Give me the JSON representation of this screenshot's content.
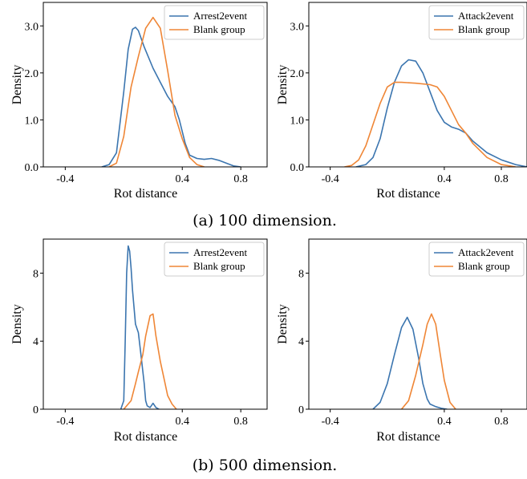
{
  "colors": {
    "series_blue": "#3b75af",
    "series_orange": "#ef8636"
  },
  "captions": [
    "(a) 100 dimension.",
    "(b) 500 dimension."
  ],
  "chart_data": [
    {
      "type": "line",
      "xlabel": "Rot distance",
      "ylabel": "Density",
      "xlim": [
        -0.55,
        0.98
      ],
      "ylim": [
        0,
        3.5
      ],
      "xticks": [
        -0.4,
        0.4,
        0.8
      ],
      "xtick_labels": [
        "-0.4",
        "0.4",
        "0.8"
      ],
      "yticks": [
        0,
        1,
        2,
        3
      ],
      "ytick_labels": [
        "0.0",
        "1.0",
        "2.0",
        "3.0"
      ],
      "grid": false,
      "legend": "top-right",
      "series": [
        {
          "name": "Arrest2event",
          "color": "#3b75af",
          "x": [
            -0.15,
            -0.1,
            -0.05,
            0,
            0.03,
            0.06,
            0.08,
            0.1,
            0.14,
            0.2,
            0.25,
            0.3,
            0.35,
            0.38,
            0.42,
            0.45,
            0.5,
            0.55,
            0.6,
            0.65,
            0.7,
            0.75,
            0.8
          ],
          "y": [
            0,
            0.05,
            0.3,
            1.6,
            2.5,
            2.93,
            2.97,
            2.9,
            2.55,
            2.1,
            1.8,
            1.5,
            1.28,
            1.0,
            0.5,
            0.25,
            0.18,
            0.16,
            0.18,
            0.14,
            0.08,
            0.02,
            0
          ]
        },
        {
          "name": "Blank group",
          "color": "#ef8636",
          "x": [
            -0.1,
            -0.05,
            0,
            0.05,
            0.1,
            0.15,
            0.2,
            0.25,
            0.3,
            0.35,
            0.4,
            0.45,
            0.5,
            0.55
          ],
          "y": [
            0,
            0.08,
            0.65,
            1.7,
            2.35,
            2.95,
            3.18,
            2.95,
            2.05,
            1.1,
            0.6,
            0.2,
            0.05,
            0
          ]
        }
      ]
    },
    {
      "type": "line",
      "xlabel": "Rot distance",
      "ylabel": "Density",
      "xlim": [
        -0.55,
        0.98
      ],
      "ylim": [
        0,
        3.5
      ],
      "xticks": [
        -0.4,
        0.4,
        0.8
      ],
      "xtick_labels": [
        "-0.4",
        "0.4",
        "0.8"
      ],
      "yticks": [
        0,
        1,
        2,
        3
      ],
      "ytick_labels": [
        "0.0",
        "1.0",
        "2.0",
        "3.0"
      ],
      "grid": false,
      "legend": "top-right",
      "series": [
        {
          "name": "Attack2event",
          "color": "#3b75af",
          "x": [
            -0.22,
            -0.15,
            -0.1,
            -0.05,
            0,
            0.05,
            0.1,
            0.15,
            0.2,
            0.25,
            0.3,
            0.35,
            0.4,
            0.45,
            0.5,
            0.55,
            0.6,
            0.7,
            0.8,
            0.9,
            0.98
          ],
          "y": [
            0,
            0.05,
            0.2,
            0.6,
            1.25,
            1.8,
            2.15,
            2.28,
            2.25,
            2.0,
            1.6,
            1.2,
            0.95,
            0.85,
            0.8,
            0.72,
            0.55,
            0.3,
            0.15,
            0.05,
            0
          ]
        },
        {
          "name": "Blank group",
          "color": "#ef8636",
          "x": [
            -0.3,
            -0.25,
            -0.2,
            -0.15,
            -0.1,
            -0.05,
            0,
            0.05,
            0.1,
            0.2,
            0.3,
            0.35,
            0.4,
            0.45,
            0.5,
            0.55,
            0.6,
            0.7,
            0.8,
            0.9
          ],
          "y": [
            0,
            0.03,
            0.15,
            0.45,
            0.9,
            1.35,
            1.7,
            1.8,
            1.8,
            1.78,
            1.75,
            1.7,
            1.5,
            1.2,
            0.9,
            0.72,
            0.5,
            0.2,
            0.05,
            0
          ]
        }
      ]
    },
    {
      "type": "line",
      "xlabel": "Rot distance",
      "ylabel": "Density",
      "xlim": [
        -0.55,
        0.98
      ],
      "ylim": [
        0,
        10
      ],
      "xticks": [
        -0.4,
        0.4,
        0.8
      ],
      "xtick_labels": [
        "-0.4",
        "0.4",
        "0.8"
      ],
      "yticks": [
        0,
        4,
        8
      ],
      "ytick_labels": [
        "0",
        "4",
        "8"
      ],
      "grid": false,
      "legend": "top-right",
      "series": [
        {
          "name": "Arrest2event",
          "color": "#3b75af",
          "x": [
            -0.02,
            0,
            0.01,
            0.02,
            0.03,
            0.04,
            0.05,
            0.06,
            0.08,
            0.1,
            0.12,
            0.14,
            0.15,
            0.16,
            0.18,
            0.2,
            0.22,
            0.24
          ],
          "y": [
            0,
            0.5,
            4.0,
            8.0,
            9.6,
            9.3,
            8.3,
            7.0,
            5.0,
            4.5,
            3.0,
            1.5,
            0.5,
            0.2,
            0.1,
            0.35,
            0.1,
            0
          ]
        },
        {
          "name": "Blank group",
          "color": "#ef8636",
          "x": [
            0,
            0.05,
            0.08,
            0.1,
            0.13,
            0.15,
            0.18,
            0.2,
            0.22,
            0.25,
            0.28,
            0.3,
            0.33,
            0.36
          ],
          "y": [
            0,
            0.5,
            1.5,
            2.2,
            3.2,
            4.3,
            5.5,
            5.6,
            4.3,
            2.8,
            1.6,
            0.8,
            0.3,
            0
          ]
        }
      ]
    },
    {
      "type": "line",
      "xlabel": "Rot distance",
      "ylabel": "Density",
      "xlim": [
        -0.55,
        0.98
      ],
      "ylim": [
        0,
        10
      ],
      "xticks": [
        -0.4,
        0.4,
        0.8
      ],
      "xtick_labels": [
        "-0.4",
        "0.4",
        "0.8"
      ],
      "yticks": [
        0,
        4,
        8
      ],
      "ytick_labels": [
        "0",
        "4",
        "8"
      ],
      "grid": false,
      "legend": "top-right",
      "series": [
        {
          "name": "Attack2event",
          "color": "#3b75af",
          "x": [
            -0.1,
            -0.05,
            0,
            0.05,
            0.1,
            0.14,
            0.18,
            0.22,
            0.25,
            0.28,
            0.3,
            0.34,
            0.38,
            0.42
          ],
          "y": [
            0,
            0.4,
            1.5,
            3.2,
            4.8,
            5.4,
            4.7,
            3.0,
            1.5,
            0.6,
            0.3,
            0.15,
            0.05,
            0
          ]
        },
        {
          "name": "Blank group",
          "color": "#ef8636",
          "x": [
            0.1,
            0.15,
            0.2,
            0.25,
            0.28,
            0.31,
            0.34,
            0.37,
            0.4,
            0.44,
            0.48
          ],
          "y": [
            0,
            0.5,
            2.0,
            3.8,
            5.0,
            5.6,
            5.0,
            3.3,
            1.7,
            0.4,
            0
          ]
        }
      ]
    }
  ]
}
